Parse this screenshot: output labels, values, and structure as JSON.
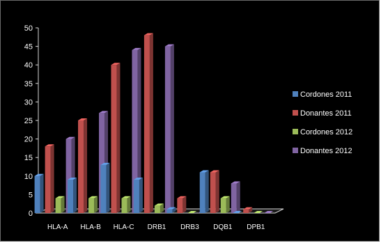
{
  "chart_data": {
    "type": "bar",
    "title": "",
    "xlabel": "",
    "ylabel": "",
    "categories": [
      "HLA-A",
      "HLA-B",
      "HLA-C",
      "DRB1",
      "DRB3",
      "DQB1",
      "DPB1"
    ],
    "ylim": [
      0,
      50
    ],
    "yticks": [
      0,
      5,
      10,
      15,
      20,
      25,
      30,
      35,
      40,
      45,
      50
    ],
    "grid": false,
    "legend_position": "right",
    "background": "#000000",
    "series": [
      {
        "name": "Cordones 2011",
        "color": "#4f81bd",
        "values": [
          10,
          9,
          13,
          9,
          1,
          11,
          0
        ]
      },
      {
        "name": "Donantes 2011",
        "color": "#c0504d",
        "values": [
          18,
          25,
          40,
          48,
          4,
          11,
          1
        ]
      },
      {
        "name": "Cordones 2012",
        "color": "#9bbb59",
        "values": [
          4,
          4,
          4,
          2,
          0,
          4,
          0
        ]
      },
      {
        "name": "Donantes 2012",
        "color": "#8064a2",
        "values": [
          20,
          27,
          44,
          45,
          0,
          8,
          0
        ]
      }
    ]
  }
}
